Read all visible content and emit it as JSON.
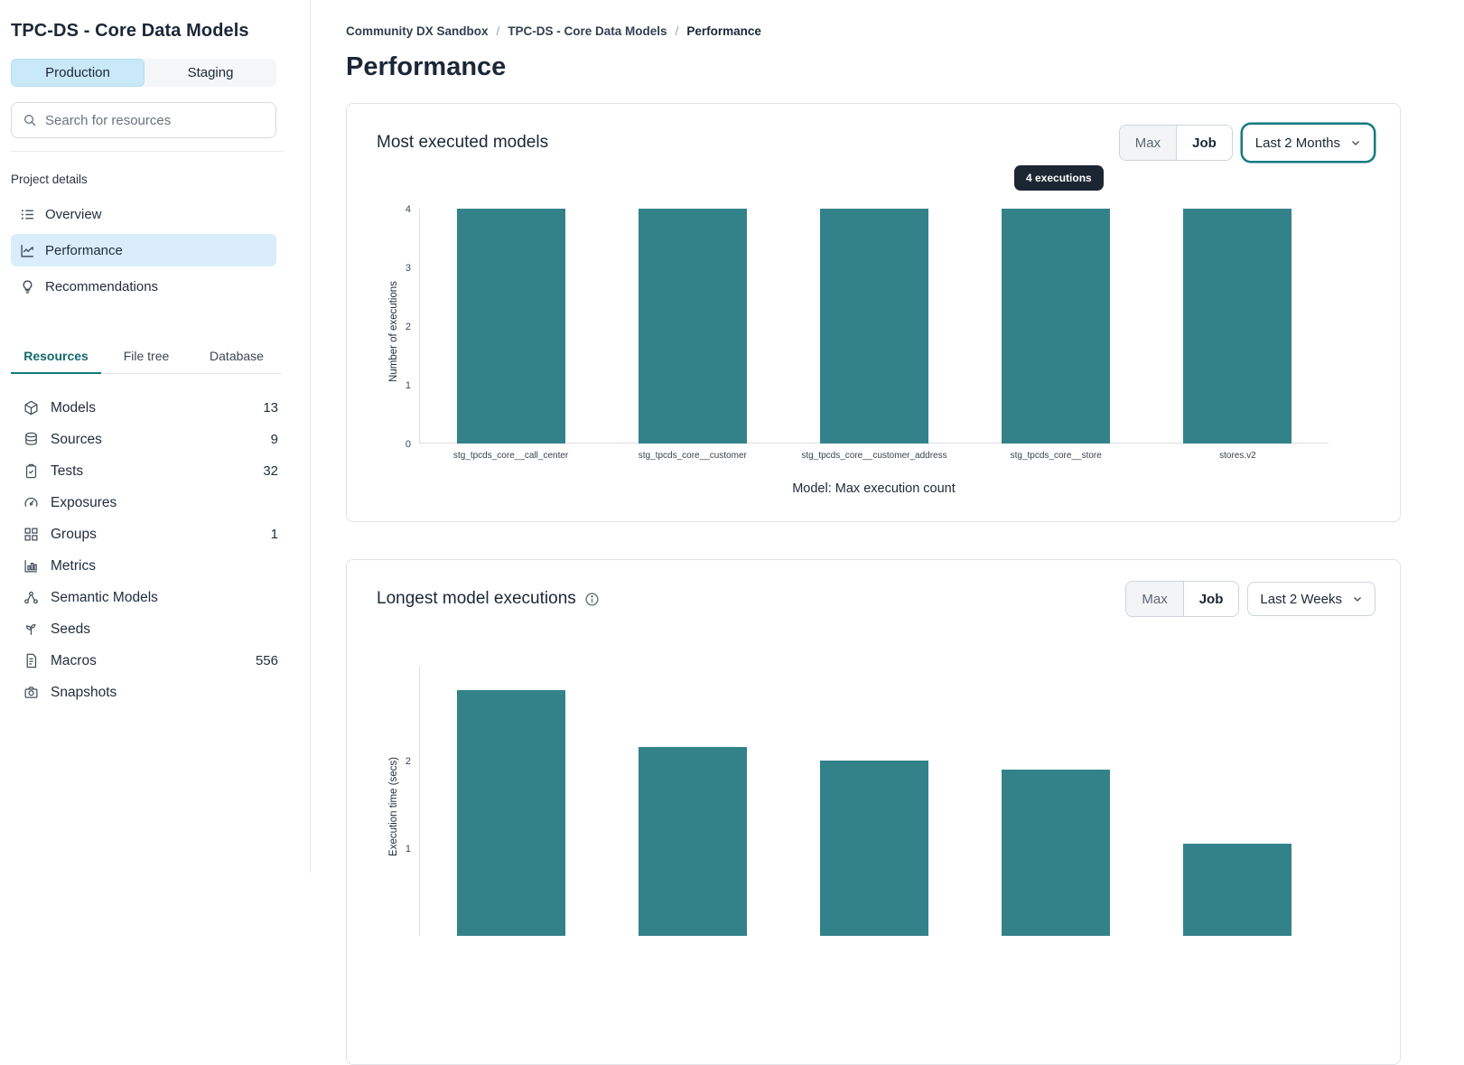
{
  "sidebar": {
    "title": "TPC-DS - Core Data Models",
    "env_tabs": [
      {
        "label": "Production",
        "active": true
      },
      {
        "label": "Staging",
        "active": false
      }
    ],
    "search_placeholder": "Search for resources",
    "section_label": "Project details",
    "nav": [
      {
        "label": "Overview",
        "active": false
      },
      {
        "label": "Performance",
        "active": true
      },
      {
        "label": "Recommendations",
        "active": false
      }
    ],
    "tabs": [
      {
        "label": "Resources",
        "active": true
      },
      {
        "label": "File tree",
        "active": false
      },
      {
        "label": "Database",
        "active": false
      }
    ],
    "resources": [
      {
        "label": "Models",
        "count": "13"
      },
      {
        "label": "Sources",
        "count": "9"
      },
      {
        "label": "Tests",
        "count": "32"
      },
      {
        "label": "Exposures",
        "count": ""
      },
      {
        "label": "Groups",
        "count": "1"
      },
      {
        "label": "Metrics",
        "count": ""
      },
      {
        "label": "Semantic Models",
        "count": ""
      },
      {
        "label": "Seeds",
        "count": ""
      },
      {
        "label": "Macros",
        "count": "556"
      },
      {
        "label": "Snapshots",
        "count": ""
      }
    ]
  },
  "breadcrumb": {
    "items": [
      "Community DX Sandbox",
      "TPC-DS - Core Data Models",
      "Performance"
    ]
  },
  "page_title": "Performance",
  "cards": [
    {
      "title": "Most executed models",
      "buttons": {
        "max": "Max",
        "job": "Job"
      },
      "dropdown": "Last 2 Months",
      "tooltip": "4 executions"
    },
    {
      "title": "Longest model executions",
      "buttons": {
        "max": "Max",
        "job": "Job"
      },
      "dropdown": "Last 2 Weeks"
    }
  ],
  "chart_data": [
    {
      "type": "bar",
      "title": "Most executed models",
      "categories": [
        "stg_tpcds_core__call_center",
        "stg_tpcds_core__customer",
        "stg_tpcds_core__customer_address",
        "stg_tpcds_core__store",
        "stores.v2"
      ],
      "values": [
        4,
        4,
        4,
        4,
        4
      ],
      "xlabel": "Model: Max execution count",
      "ylabel": "Number of executions",
      "ylim": [
        0,
        4
      ],
      "yticks": [
        0,
        1,
        2,
        3,
        4
      ],
      "bar_color": "#33828a",
      "legend": "none",
      "grid": "off",
      "annotation": {
        "text": "4 executions",
        "bar_index": 3
      }
    },
    {
      "type": "bar",
      "title": "Longest model executions",
      "categories": [
        "",
        "",
        "",
        "",
        ""
      ],
      "values": [
        2.8,
        2.15,
        2.0,
        1.9,
        1.05
      ],
      "xlabel": "",
      "ylabel": "Execution time (secs)",
      "ylim": [
        0,
        3
      ],
      "yticks": [
        1,
        2
      ],
      "bar_color": "#33828a",
      "legend": "none",
      "grid": "off",
      "note": "chart partially cut off at bottom of viewport"
    }
  ],
  "colors": {
    "accent_teal": "#117a7f",
    "bar_teal": "#33828a",
    "active_blue": "#d9edfb",
    "env_blue": "#c9e8f8",
    "tooltip_bg": "#1c2633",
    "border": "#e0e4e9"
  }
}
